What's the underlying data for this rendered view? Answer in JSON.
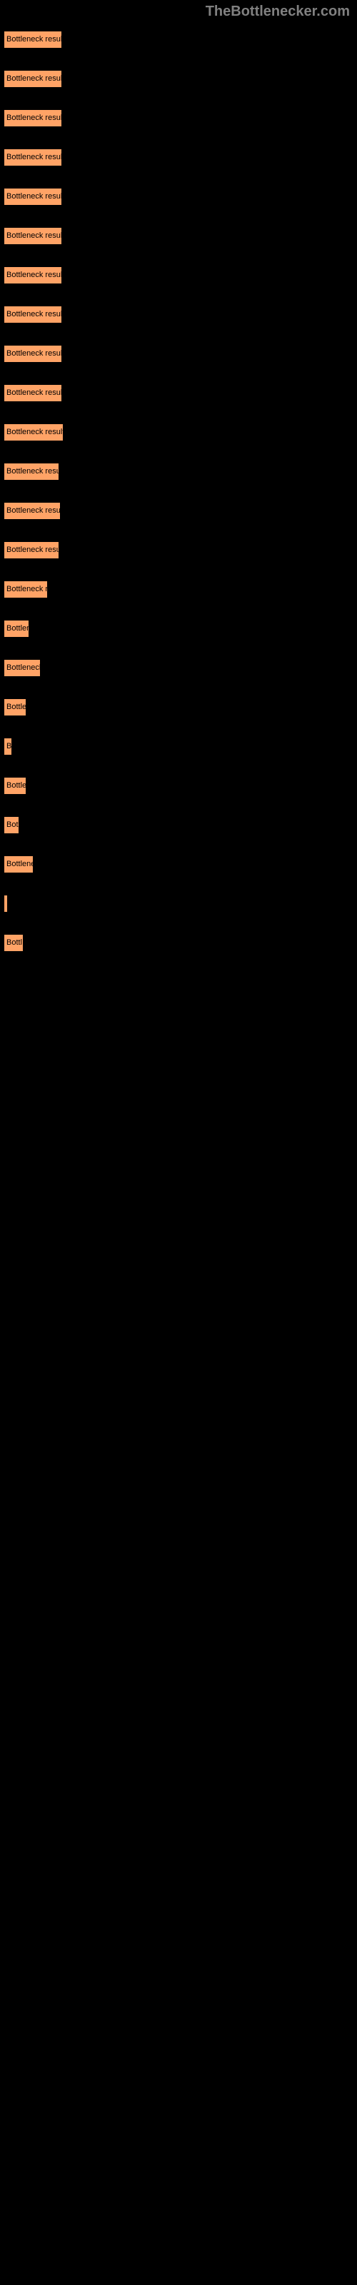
{
  "watermark": "TheBottlenecker.com",
  "bar_color": "#ffa366",
  "background_color": "#000000",
  "text_color": "#000000",
  "watermark_color": "#808080",
  "results": [
    {
      "label": "Bottleneck result",
      "width": 82
    },
    {
      "label": "Bottleneck result",
      "width": 82
    },
    {
      "label": "Bottleneck result",
      "width": 82
    },
    {
      "label": "Bottleneck result",
      "width": 82
    },
    {
      "label": "Bottleneck result",
      "width": 82
    },
    {
      "label": "Bottleneck result",
      "width": 82
    },
    {
      "label": "Bottleneck result",
      "width": 82
    },
    {
      "label": "Bottleneck result",
      "width": 82
    },
    {
      "label": "Bottleneck result",
      "width": 82
    },
    {
      "label": "Bottleneck result",
      "width": 82
    },
    {
      "label": "Bottleneck result",
      "width": 84
    },
    {
      "label": "Bottleneck resu",
      "width": 78
    },
    {
      "label": "Bottleneck resul",
      "width": 80
    },
    {
      "label": "Bottleneck resu",
      "width": 78
    },
    {
      "label": "Bottleneck r",
      "width": 62
    },
    {
      "label": "Bottlen",
      "width": 36
    },
    {
      "label": "Bottleneck",
      "width": 52
    },
    {
      "label": "Bottle",
      "width": 32
    },
    {
      "label": "B",
      "width": 12
    },
    {
      "label": "Bottle",
      "width": 32
    },
    {
      "label": "Bot",
      "width": 22
    },
    {
      "label": "Bottlene",
      "width": 42
    },
    {
      "label": "",
      "width": 6
    },
    {
      "label": "Bottl",
      "width": 28
    }
  ]
}
